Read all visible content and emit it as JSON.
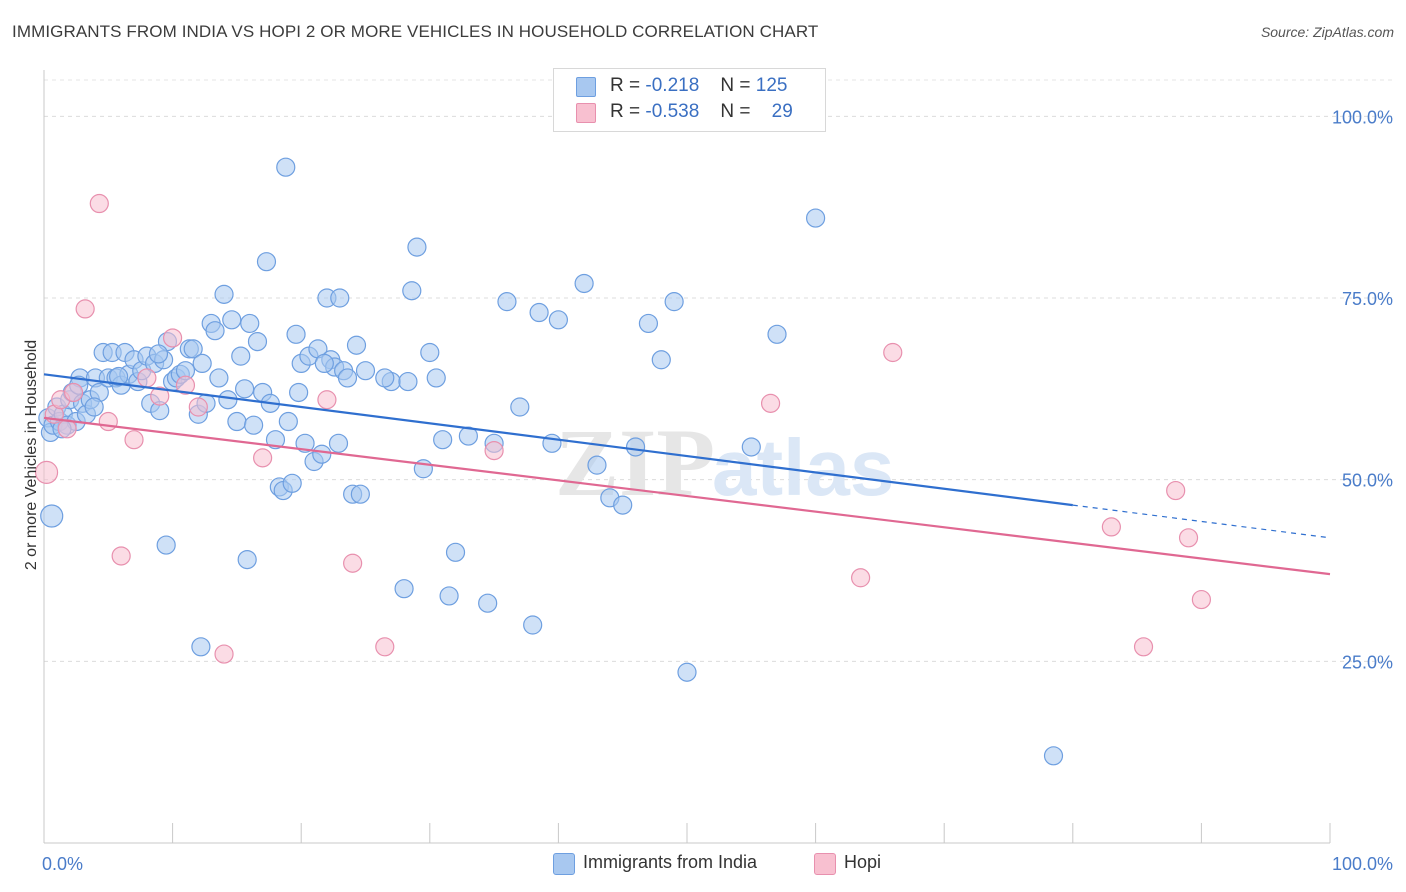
{
  "header": {
    "title": "IMMIGRANTS FROM INDIA VS HOPI 2 OR MORE VEHICLES IN HOUSEHOLD CORRELATION CHART",
    "source": "Source: ZipAtlas.com"
  },
  "legend": {
    "rows": [
      {
        "r_label": "R =",
        "r_value": "-0.218",
        "n_label": "N =",
        "n_value": "125",
        "color": "#a8c8f0",
        "border": "#6e9fe0"
      },
      {
        "r_label": "R =",
        "r_value": "-0.538",
        "n_label": "N =",
        "n_value": "29",
        "color": "#f8c0d0",
        "border": "#e890ae"
      }
    ]
  },
  "bottom_legend": [
    {
      "label": "Immigrants from India",
      "color": "#a8c8f0",
      "border": "#6e9fe0"
    },
    {
      "label": "Hopi",
      "color": "#f8c0d0",
      "border": "#e890ae"
    }
  ],
  "chart_data": {
    "type": "scatter",
    "ylabel": "2 or more Vehicles in Household",
    "xlim": [
      0,
      100
    ],
    "ylim": [
      0,
      105
    ],
    "x_ticks": [
      "0.0%",
      "100.0%"
    ],
    "y_ticks": [
      {
        "value": 25,
        "label": "25.0%"
      },
      {
        "value": 50,
        "label": "50.0%"
      },
      {
        "value": 75,
        "label": "75.0%"
      },
      {
        "value": 100,
        "label": "100.0%"
      }
    ],
    "grid": "horizontal-dashed",
    "watermark": "ZIPatlas",
    "series": [
      {
        "name": "Immigrants from India",
        "color": "#6e9fe0",
        "fill": "#a8c8f0",
        "trend": {
          "x0": 0,
          "y0": 64.5,
          "x1": 80,
          "y1": 46.5,
          "dash_to_x": 100,
          "dash_to_y": 42.0,
          "color": "#2f6fcf"
        },
        "points": [
          [
            0.3,
            58.5
          ],
          [
            0.5,
            56.5
          ],
          [
            0.7,
            57.5
          ],
          [
            1.0,
            60
          ],
          [
            1.2,
            58
          ],
          [
            1.5,
            59
          ],
          [
            1.8,
            57.5
          ],
          [
            2.0,
            61
          ],
          [
            2.2,
            62
          ],
          [
            2.5,
            58
          ],
          [
            2.8,
            64
          ],
          [
            3.0,
            60.5
          ],
          [
            3.3,
            59
          ],
          [
            3.6,
            61
          ],
          [
            4.0,
            64
          ],
          [
            4.3,
            62
          ],
          [
            4.6,
            67.5
          ],
          [
            5.0,
            64
          ],
          [
            5.3,
            67.5
          ],
          [
            5.6,
            64
          ],
          [
            6.0,
            63
          ],
          [
            6.3,
            67.5
          ],
          [
            6.6,
            64.5
          ],
          [
            7.0,
            66.5
          ],
          [
            7.3,
            63.5
          ],
          [
            7.6,
            65
          ],
          [
            8.0,
            67
          ],
          [
            8.3,
            60.5
          ],
          [
            8.6,
            66
          ],
          [
            9.0,
            59.5
          ],
          [
            9.3,
            66.5
          ],
          [
            9.6,
            69
          ],
          [
            10.0,
            63.5
          ],
          [
            10.3,
            64
          ],
          [
            10.6,
            64.5
          ],
          [
            11.0,
            65
          ],
          [
            11.3,
            68
          ],
          [
            11.6,
            68
          ],
          [
            12.0,
            59
          ],
          [
            12.3,
            66
          ],
          [
            12.6,
            60.5
          ],
          [
            13.0,
            71.5
          ],
          [
            13.3,
            70.5
          ],
          [
            13.6,
            64
          ],
          [
            14.0,
            75.5
          ],
          [
            14.3,
            61
          ],
          [
            14.6,
            72
          ],
          [
            15.0,
            58
          ],
          [
            15.3,
            67
          ],
          [
            15.6,
            62.5
          ],
          [
            16.0,
            71.5
          ],
          [
            16.3,
            57.5
          ],
          [
            16.6,
            69
          ],
          [
            17.0,
            62
          ],
          [
            17.3,
            80
          ],
          [
            17.6,
            60.5
          ],
          [
            18.0,
            55.5
          ],
          [
            18.3,
            49
          ],
          [
            18.6,
            48.5
          ],
          [
            19.0,
            58
          ],
          [
            19.3,
            49.5
          ],
          [
            19.6,
            70
          ],
          [
            20.0,
            66
          ],
          [
            20.3,
            55
          ],
          [
            20.6,
            67
          ],
          [
            21.0,
            52.5
          ],
          [
            21.3,
            68
          ],
          [
            21.6,
            53.5
          ],
          [
            22.0,
            75
          ],
          [
            22.3,
            66.5
          ],
          [
            22.6,
            65.5
          ],
          [
            23.0,
            75
          ],
          [
            23.3,
            65
          ],
          [
            23.6,
            64
          ],
          [
            24.0,
            48
          ],
          [
            24.3,
            68.5
          ],
          [
            24.6,
            48
          ],
          [
            25.0,
            65
          ],
          [
            27.0,
            63.5
          ],
          [
            28.0,
            35
          ],
          [
            28.3,
            63.5
          ],
          [
            28.6,
            76
          ],
          [
            29.0,
            82
          ],
          [
            29.5,
            51.5
          ],
          [
            30.0,
            67.5
          ],
          [
            30.5,
            64
          ],
          [
            31.0,
            55.5
          ],
          [
            31.5,
            34
          ],
          [
            32.0,
            40
          ],
          [
            33.0,
            56
          ],
          [
            34.5,
            33
          ],
          [
            35.0,
            55
          ],
          [
            36.0,
            74.5
          ],
          [
            37.0,
            60
          ],
          [
            38.0,
            30
          ],
          [
            38.5,
            73
          ],
          [
            39.5,
            55
          ],
          [
            40.0,
            72
          ],
          [
            42.0,
            77
          ],
          [
            43.0,
            52
          ],
          [
            44.0,
            47.5
          ],
          [
            45.0,
            46.5
          ],
          [
            46.0,
            54.5
          ],
          [
            47.0,
            71.5
          ],
          [
            48.0,
            66.5
          ],
          [
            49.0,
            74.5
          ],
          [
            50.0,
            23.5
          ],
          [
            55.0,
            54.5
          ],
          [
            57.0,
            70
          ],
          [
            60.0,
            86
          ],
          [
            0.6,
            45
          ],
          [
            9.5,
            41
          ],
          [
            12.2,
            27
          ],
          [
            15.8,
            39
          ],
          [
            18.8,
            93
          ],
          [
            19.8,
            62
          ],
          [
            21.8,
            66
          ],
          [
            22.9,
            55
          ],
          [
            26.5,
            64
          ],
          [
            78.5,
            12
          ],
          [
            1.4,
            57
          ],
          [
            2.7,
            63
          ],
          [
            3.9,
            60
          ],
          [
            5.8,
            64.2
          ],
          [
            8.9,
            67.3
          ]
        ]
      },
      {
        "name": "Hopi",
        "color": "#e890ae",
        "fill": "#f8c0d0",
        "trend": {
          "x0": 0,
          "y0": 58.5,
          "x1": 100,
          "y1": 37.0,
          "color": "#e06892"
        },
        "points": [
          [
            0.2,
            51
          ],
          [
            0.8,
            59
          ],
          [
            1.3,
            61
          ],
          [
            1.8,
            57
          ],
          [
            2.3,
            62
          ],
          [
            3.2,
            73.5
          ],
          [
            4.3,
            88
          ],
          [
            5.0,
            58
          ],
          [
            6.0,
            39.5
          ],
          [
            7.0,
            55.5
          ],
          [
            8.0,
            64
          ],
          [
            9.0,
            61.5
          ],
          [
            10.0,
            69.5
          ],
          [
            11.0,
            63
          ],
          [
            12.0,
            60
          ],
          [
            14.0,
            26
          ],
          [
            17.0,
            53
          ],
          [
            22.0,
            61
          ],
          [
            24.0,
            38.5
          ],
          [
            26.5,
            27
          ],
          [
            35.0,
            54
          ],
          [
            56.5,
            60.5
          ],
          [
            63.5,
            36.5
          ],
          [
            66.0,
            67.5
          ],
          [
            83.0,
            43.5
          ],
          [
            85.5,
            27
          ],
          [
            88.0,
            48.5
          ],
          [
            89.0,
            42
          ],
          [
            90.0,
            33.5
          ]
        ]
      }
    ]
  }
}
